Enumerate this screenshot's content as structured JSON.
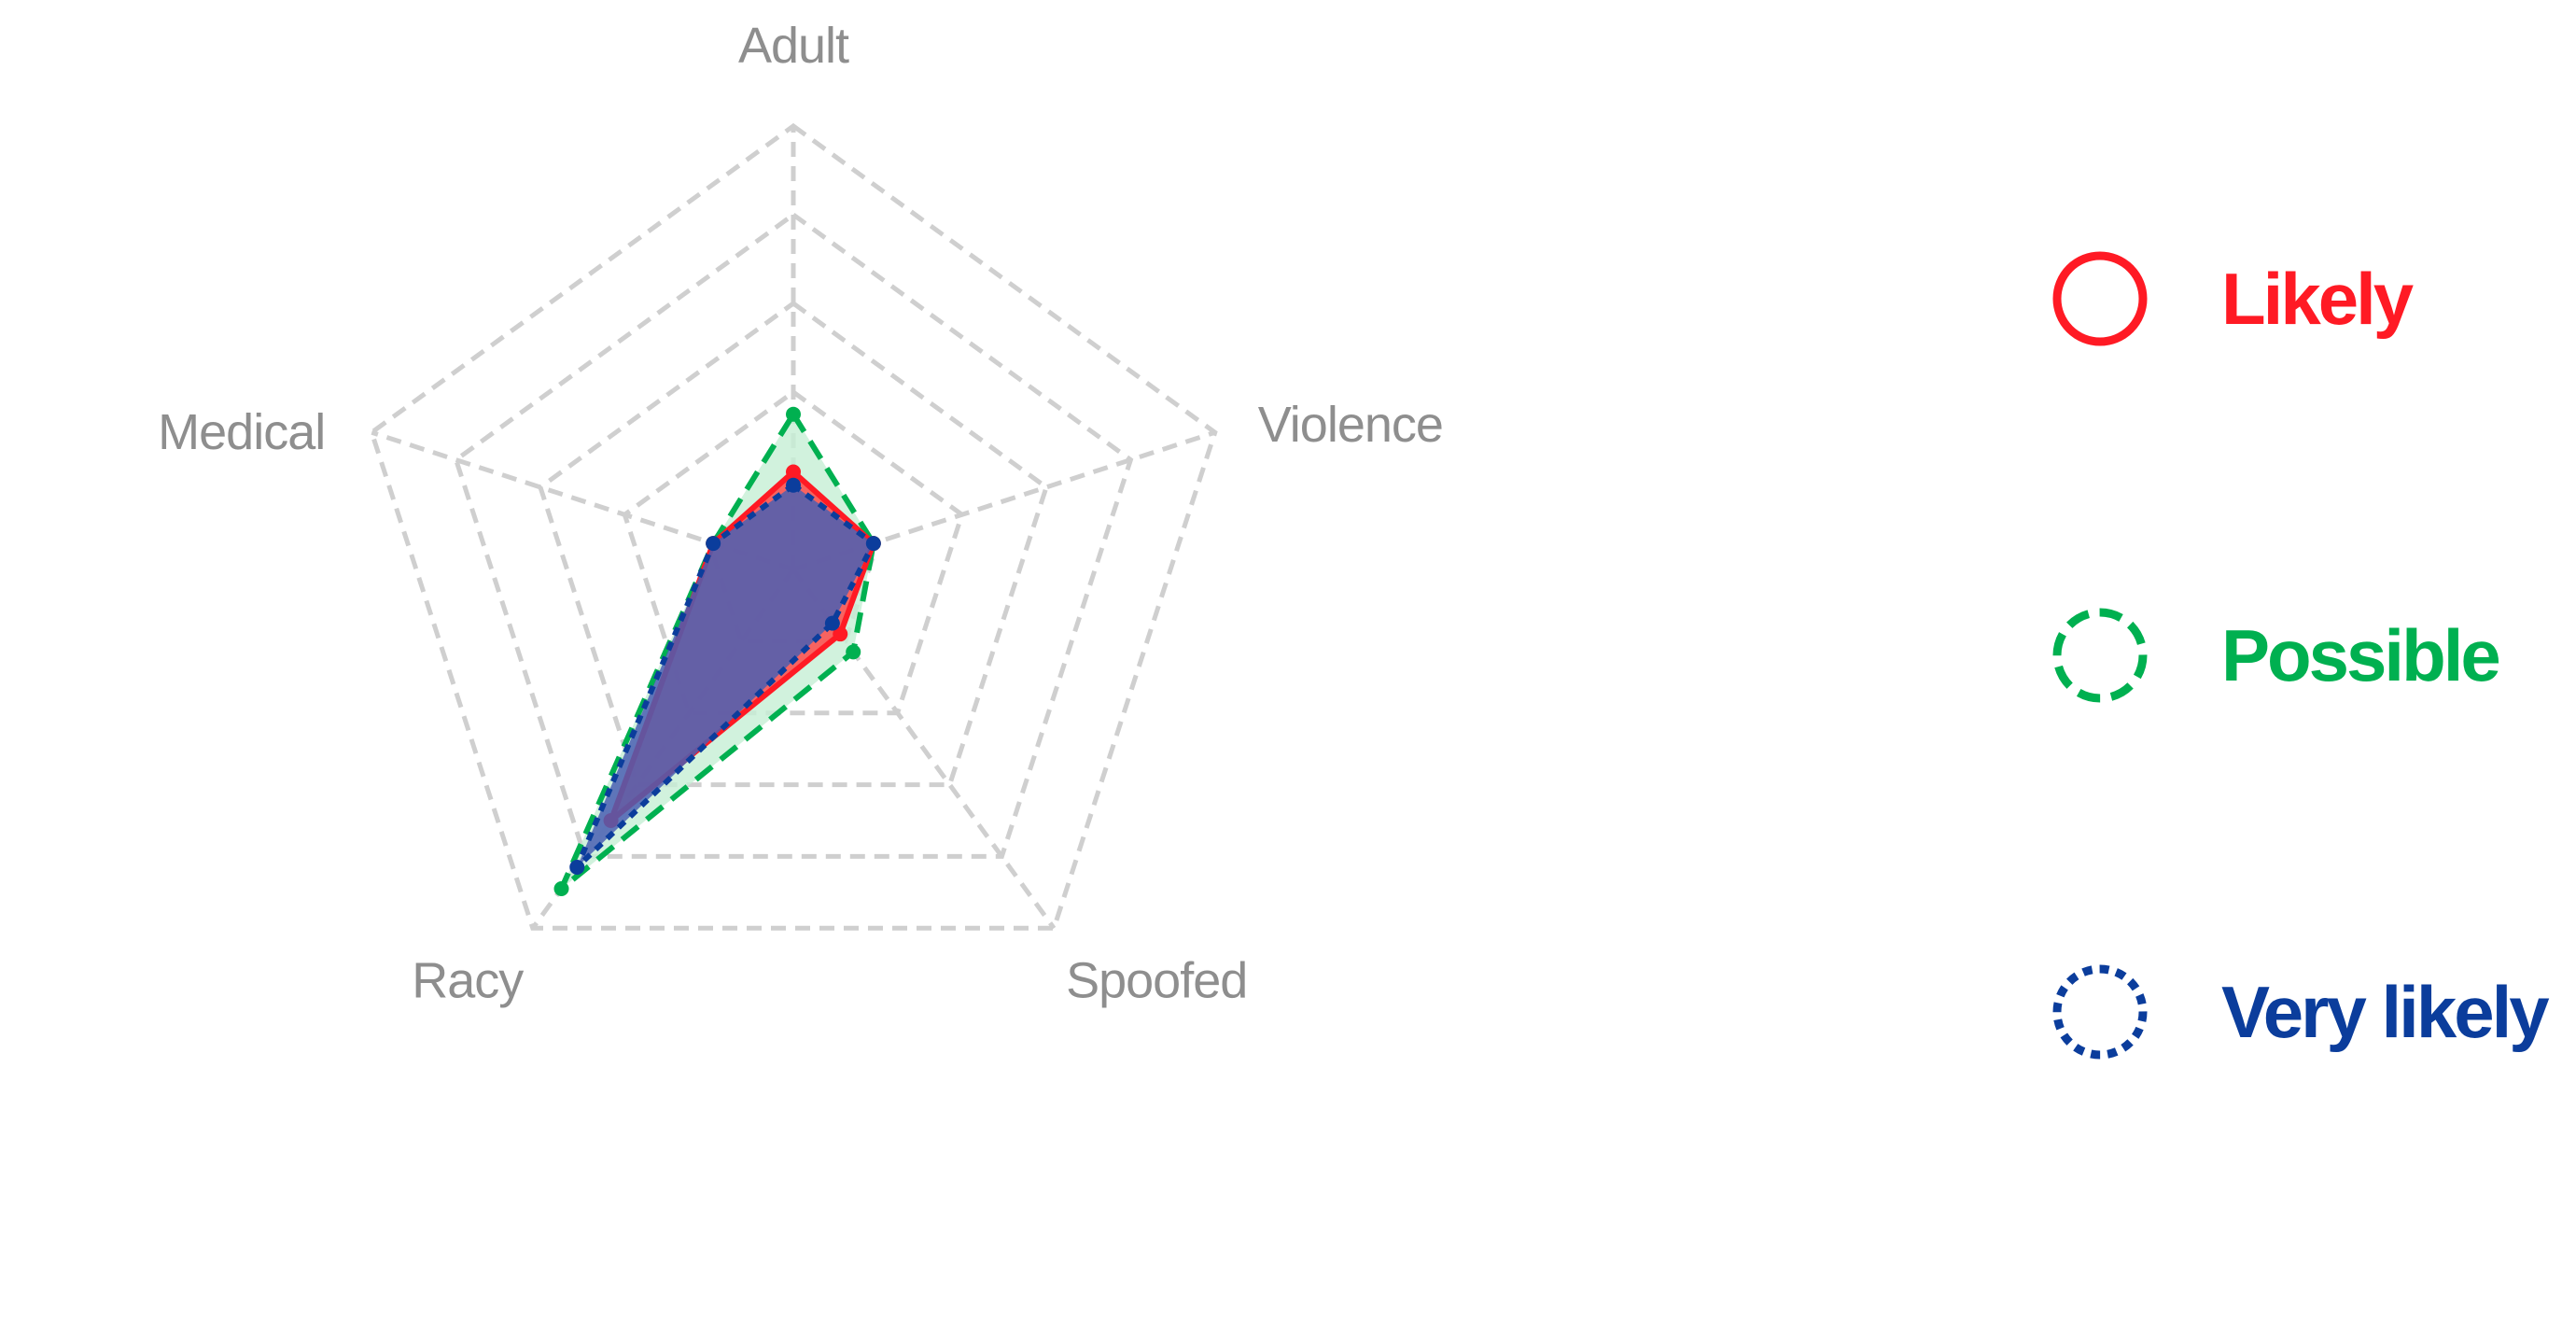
{
  "chart_data": {
    "type": "radar",
    "axes": [
      "Adult",
      "Violence",
      "Spoofed",
      "Racy",
      "Medical"
    ],
    "scale": {
      "min": 0,
      "max": 5,
      "rings": 5
    },
    "grid": true,
    "legend_position": "right",
    "series": [
      {
        "name": "Possible",
        "values": [
          1.75,
          0.95,
          1.15,
          4.45,
          0.95
        ],
        "color": "#00b050",
        "fill": "#c6efd5",
        "line_style": "dashed"
      },
      {
        "name": "Likely",
        "values": [
          1.1,
          0.95,
          0.9,
          3.5,
          0.95
        ],
        "color": "#ff1a24",
        "fill": "#ff4a4a",
        "line_style": "solid"
      },
      {
        "name": "Very likely",
        "values": [
          0.95,
          0.95,
          0.75,
          4.15,
          0.95
        ],
        "color": "#0b3d9c",
        "fill": "#4a5fb3",
        "line_style": "dotted"
      }
    ],
    "legend": [
      {
        "name": "Likely",
        "color": "#ff1a24",
        "line_style": "solid"
      },
      {
        "name": "Possible",
        "color": "#00b050",
        "line_style": "dashed"
      },
      {
        "name": "Very likely",
        "color": "#0b3d9c",
        "line_style": "dotted"
      }
    ]
  }
}
